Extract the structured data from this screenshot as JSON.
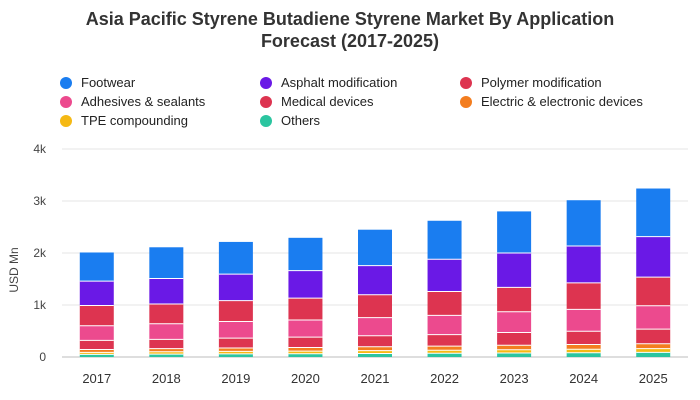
{
  "chart_data": {
    "type": "bar",
    "stacked": true,
    "title_line1": "Asia Pacific Styrene Butadiene Styrene Market By Application",
    "title_line2": "Forecast (2017-2025)",
    "ylabel": "USD Mn",
    "ylim": [
      0,
      4000
    ],
    "yticks": [
      0,
      1000,
      2000,
      3000,
      4000
    ],
    "ytick_labels": [
      "0",
      "1k",
      "2k",
      "3k",
      "4k"
    ],
    "grid": true,
    "legend_position": "top",
    "categories": [
      "2017",
      "2018",
      "2019",
      "2020",
      "2021",
      "2022",
      "2023",
      "2024",
      "2025"
    ],
    "series": [
      {
        "name": "Others",
        "color": "#2bc5a0",
        "values": [
          50,
          55,
          60,
          62,
          68,
          72,
          78,
          82,
          88
        ]
      },
      {
        "name": "TPE compounding",
        "color": "#f5b914",
        "values": [
          40,
          45,
          48,
          50,
          55,
          58,
          62,
          68,
          72
        ]
      },
      {
        "name": "Electric & electronic devices",
        "color": "#f37d1f",
        "values": [
          55,
          60,
          65,
          70,
          75,
          80,
          85,
          90,
          95
        ]
      },
      {
        "name": "Medical devices",
        "color": "#dd3450",
        "values": [
          175,
          180,
          190,
          200,
          210,
          220,
          245,
          255,
          280
        ]
      },
      {
        "name": "Adhesives & sealants",
        "color": "#ec4a8e",
        "values": [
          280,
          300,
          320,
          330,
          350,
          370,
          400,
          420,
          450
        ]
      },
      {
        "name": "Polymer modification",
        "color": "#dd3450",
        "values": [
          390,
          380,
          400,
          420,
          440,
          460,
          470,
          510,
          550
        ]
      },
      {
        "name": "Asphalt modification",
        "color": "#6a19e6",
        "values": [
          470,
          490,
          510,
          530,
          560,
          620,
          660,
          710,
          780
        ]
      },
      {
        "name": "Footwear",
        "color": "#1a7df0",
        "values": [
          550,
          600,
          620,
          630,
          690,
          740,
          800,
          880,
          925
        ]
      }
    ],
    "legend_order": [
      "Footwear",
      "Asphalt modification",
      "Polymer modification",
      "Adhesives & sealants",
      "Medical devices",
      "Electric & electronic devices",
      "TPE compounding",
      "Others"
    ]
  }
}
